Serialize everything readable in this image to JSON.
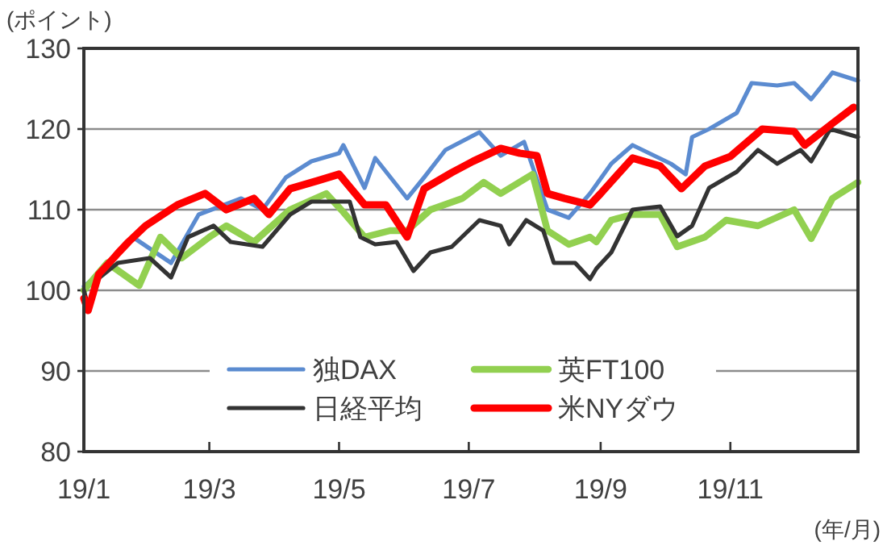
{
  "chart_data": {
    "type": "line",
    "ylabel": "(ポイント)",
    "xlabel": "(年/月)",
    "xlim": [
      "--01-01",
      "--12-31"
    ],
    "xticks": [
      {
        "value": "--01-01",
        "label": "19/1"
      },
      {
        "value": "--03-01",
        "label": "19/3"
      },
      {
        "value": "--05-01",
        "label": "19/5"
      },
      {
        "value": "--07-01",
        "label": "19/7"
      },
      {
        "value": "--09-01",
        "label": "19/9"
      },
      {
        "value": "--11-01",
        "label": "19/11"
      }
    ],
    "ylim": [
      80,
      130
    ],
    "yticks": [
      80,
      90,
      100,
      110,
      120,
      130
    ],
    "grid": "y",
    "legend": "bottom",
    "marker": "none",
    "line_style": "solid",
    "series": [
      {
        "name": "独DAX",
        "color": "#5b8bd0",
        "x": [
          "--01-01",
          "--01-08",
          "--01-24",
          "--02-11",
          "--02-24",
          "--03-16",
          "--03-26",
          "--04-06",
          "--04-18",
          "--05-01",
          "--05-03",
          "--05-13",
          "--05-18",
          "--06-02",
          "--06-10",
          "--06-20",
          "--07-06",
          "--07-16",
          "--07-27",
          "--08-07",
          "--08-17",
          "--08-27",
          "--09-06",
          "--09-16",
          "--10-04",
          "--10-11",
          "--10-14",
          "--10-22",
          "--11-04",
          "--11-11",
          "--11-23",
          "--12-01",
          "--12-09",
          "--12-19",
          "--12-31"
        ],
        "values": [
          100.5,
          102,
          106.6,
          103.4,
          109.4,
          111.4,
          110,
          114,
          116,
          117,
          118,
          112.7,
          116.4,
          111.4,
          114,
          117.4,
          119.6,
          116.7,
          118.4,
          110,
          109,
          112,
          115.7,
          118,
          115.7,
          114.4,
          119,
          120,
          122,
          125.7,
          125.4,
          125.7,
          123.7,
          127,
          126
        ]
      },
      {
        "name": "英FT100",
        "color": "#92d050",
        "x": [
          "--01-01",
          "--01-12",
          "--01-27",
          "--02-06",
          "--02-16",
          "--03-01",
          "--03-09",
          "--03-22",
          "--04-08",
          "--04-25",
          "--05-03",
          "--05-13",
          "--05-25",
          "--06-02",
          "--06-13",
          "--06-28",
          "--07-08",
          "--07-16",
          "--07-31",
          "--08-07",
          "--08-17",
          "--08-27",
          "--08-30",
          "--09-06",
          "--09-16",
          "--09-29",
          "--10-07",
          "--10-20",
          "--10-30",
          "--11-14",
          "--12-01",
          "--12-09",
          "--12-19",
          "--12-31"
        ],
        "values": [
          100,
          103.4,
          100.6,
          106.6,
          104,
          106.6,
          108,
          106,
          110,
          112,
          109.7,
          106.6,
          107.4,
          107.4,
          110,
          111.4,
          113.4,
          112,
          114.4,
          107.4,
          105.7,
          106.6,
          106,
          108.7,
          109.4,
          109.4,
          105.4,
          106.6,
          108.7,
          108,
          110,
          106.4,
          111.4,
          113.4
        ]
      },
      {
        "name": "日経平均",
        "color": "#333333",
        "x": [
          "--01-01",
          "--01-03",
          "--01-08",
          "--01-17",
          "--02-01",
          "--02-11",
          "--02-19",
          "--03-03",
          "--03-11",
          "--03-26",
          "--04-08",
          "--04-18",
          "--05-01",
          "--05-06",
          "--05-11",
          "--05-18",
          "--05-28",
          "--06-05",
          "--06-13",
          "--06-23",
          "--07-06",
          "--07-16",
          "--07-20",
          "--07-28",
          "--08-05",
          "--08-10",
          "--08-20",
          "--08-27",
          "--08-30",
          "--09-06",
          "--09-16",
          "--09-29",
          "--10-07",
          "--10-14",
          "--10-22",
          "--11-04",
          "--11-14",
          "--11-23",
          "--12-04",
          "--12-09",
          "--12-18",
          "--12-31"
        ],
        "values": [
          100,
          98,
          101.5,
          103.4,
          104,
          101.6,
          106.6,
          108,
          106,
          105.4,
          109.4,
          111,
          111,
          111,
          106.6,
          105.7,
          106,
          102.4,
          104.7,
          105.4,
          108.7,
          108,
          105.7,
          108.7,
          107.4,
          103.4,
          103.4,
          101.4,
          102.7,
          104.7,
          110,
          110.4,
          106.7,
          108,
          112.7,
          114.7,
          117.4,
          115.7,
          117.4,
          116,
          120,
          119
        ]
      },
      {
        "name": "米NYダウ",
        "color": "#ff0000",
        "x": [
          "--01-01",
          "--01-03",
          "--01-08",
          "--01-15",
          "--01-17",
          "--01-22",
          "--01-30",
          "--02-14",
          "--02-27",
          "--03-09",
          "--03-22",
          "--03-29",
          "--04-08",
          "--04-21",
          "--05-01",
          "--05-13",
          "--05-23",
          "--06-02",
          "--06-10",
          "--06-23",
          "--07-03",
          "--07-16",
          "--07-25",
          "--08-02",
          "--08-07",
          "--08-15",
          "--08-27",
          "--09-01",
          "--09-16",
          "--09-29",
          "--10-09",
          "--10-20",
          "--11-01",
          "--11-16",
          "--12-01",
          "--12-06",
          "--12-19",
          "--12-29"
        ],
        "values": [
          99,
          97.5,
          102,
          104,
          104.6,
          106,
          108,
          110.6,
          112,
          110,
          111.4,
          109.4,
          112.6,
          113.6,
          114.4,
          110.6,
          110.6,
          106.6,
          112.6,
          114.6,
          116,
          117.6,
          117,
          116.7,
          112,
          111.4,
          110.6,
          112,
          116.4,
          115.4,
          112.6,
          115.4,
          116.6,
          120,
          119.7,
          118,
          120.7,
          122.7
        ]
      }
    ]
  }
}
